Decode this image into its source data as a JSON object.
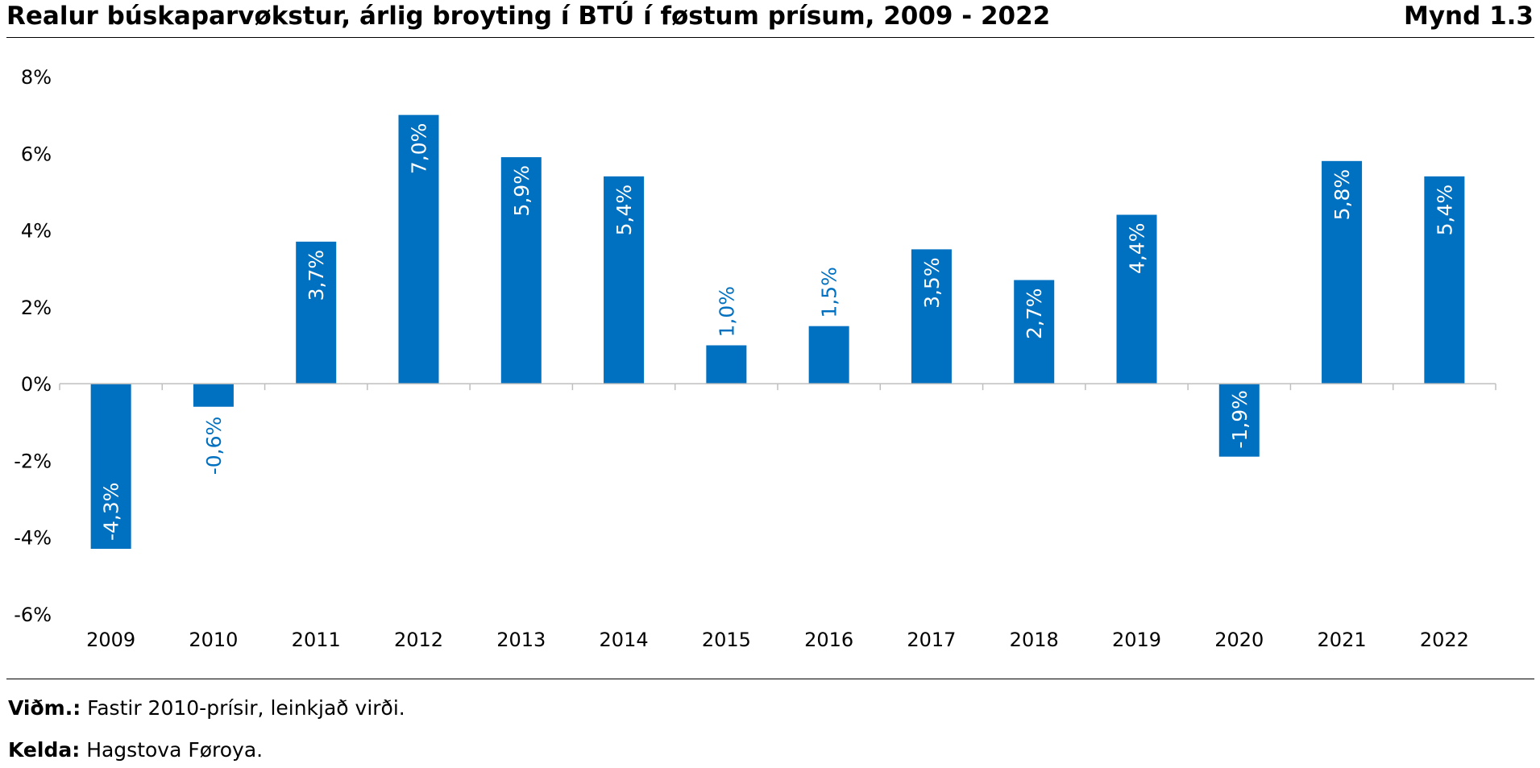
{
  "header": {
    "title": "Realur búskaparvøkstur, árlig broyting í BTÚ í føstum prísum, 2009 - 2022",
    "figure_label": "Mynd 1.3"
  },
  "notes": {
    "note_label": "Viðm.:",
    "note_text": "Fastir 2010-prísir, leinkjað virði.",
    "source_label": "Kelda:",
    "source_text": "Hagstova Føroya."
  },
  "colors": {
    "bar": "#0070C0",
    "label_inside": "#ffffff",
    "label_outside": "#0070C0",
    "axis": "#BFBFBF"
  },
  "chart_data": {
    "type": "bar",
    "title": "Realur búskaparvøkstur, árlig broyting í BTÚ í føstum prísum, 2009 - 2022",
    "categories": [
      "2009",
      "2010",
      "2011",
      "2012",
      "2013",
      "2014",
      "2015",
      "2016",
      "2017",
      "2018",
      "2019",
      "2020",
      "2021",
      "2022"
    ],
    "values": [
      -4.3,
      -0.6,
      3.7,
      7.0,
      5.9,
      5.4,
      1.0,
      1.5,
      3.5,
      2.7,
      4.4,
      -1.9,
      5.8,
      5.4
    ],
    "data_labels": [
      "-4,3%",
      "-0,6%",
      "3,7%",
      "7,0%",
      "5,9%",
      "5,4%",
      "1,0%",
      "1,5%",
      "3,5%",
      "2,7%",
      "4,4%",
      "-1,9%",
      "5,8%",
      "5,4%"
    ],
    "label_inside": [
      true,
      false,
      true,
      true,
      true,
      true,
      false,
      false,
      true,
      true,
      true,
      true,
      true,
      true
    ],
    "ylim": [
      -6,
      8
    ],
    "yticks": [
      8,
      6,
      4,
      2,
      0,
      -2,
      -4,
      -6
    ],
    "ytick_labels": [
      "8%",
      "6%",
      "4%",
      "2%",
      "0%",
      "-2%",
      "-4%",
      "-6%"
    ],
    "xlabel": "",
    "ylabel": "",
    "grid": false,
    "legend": "none"
  }
}
